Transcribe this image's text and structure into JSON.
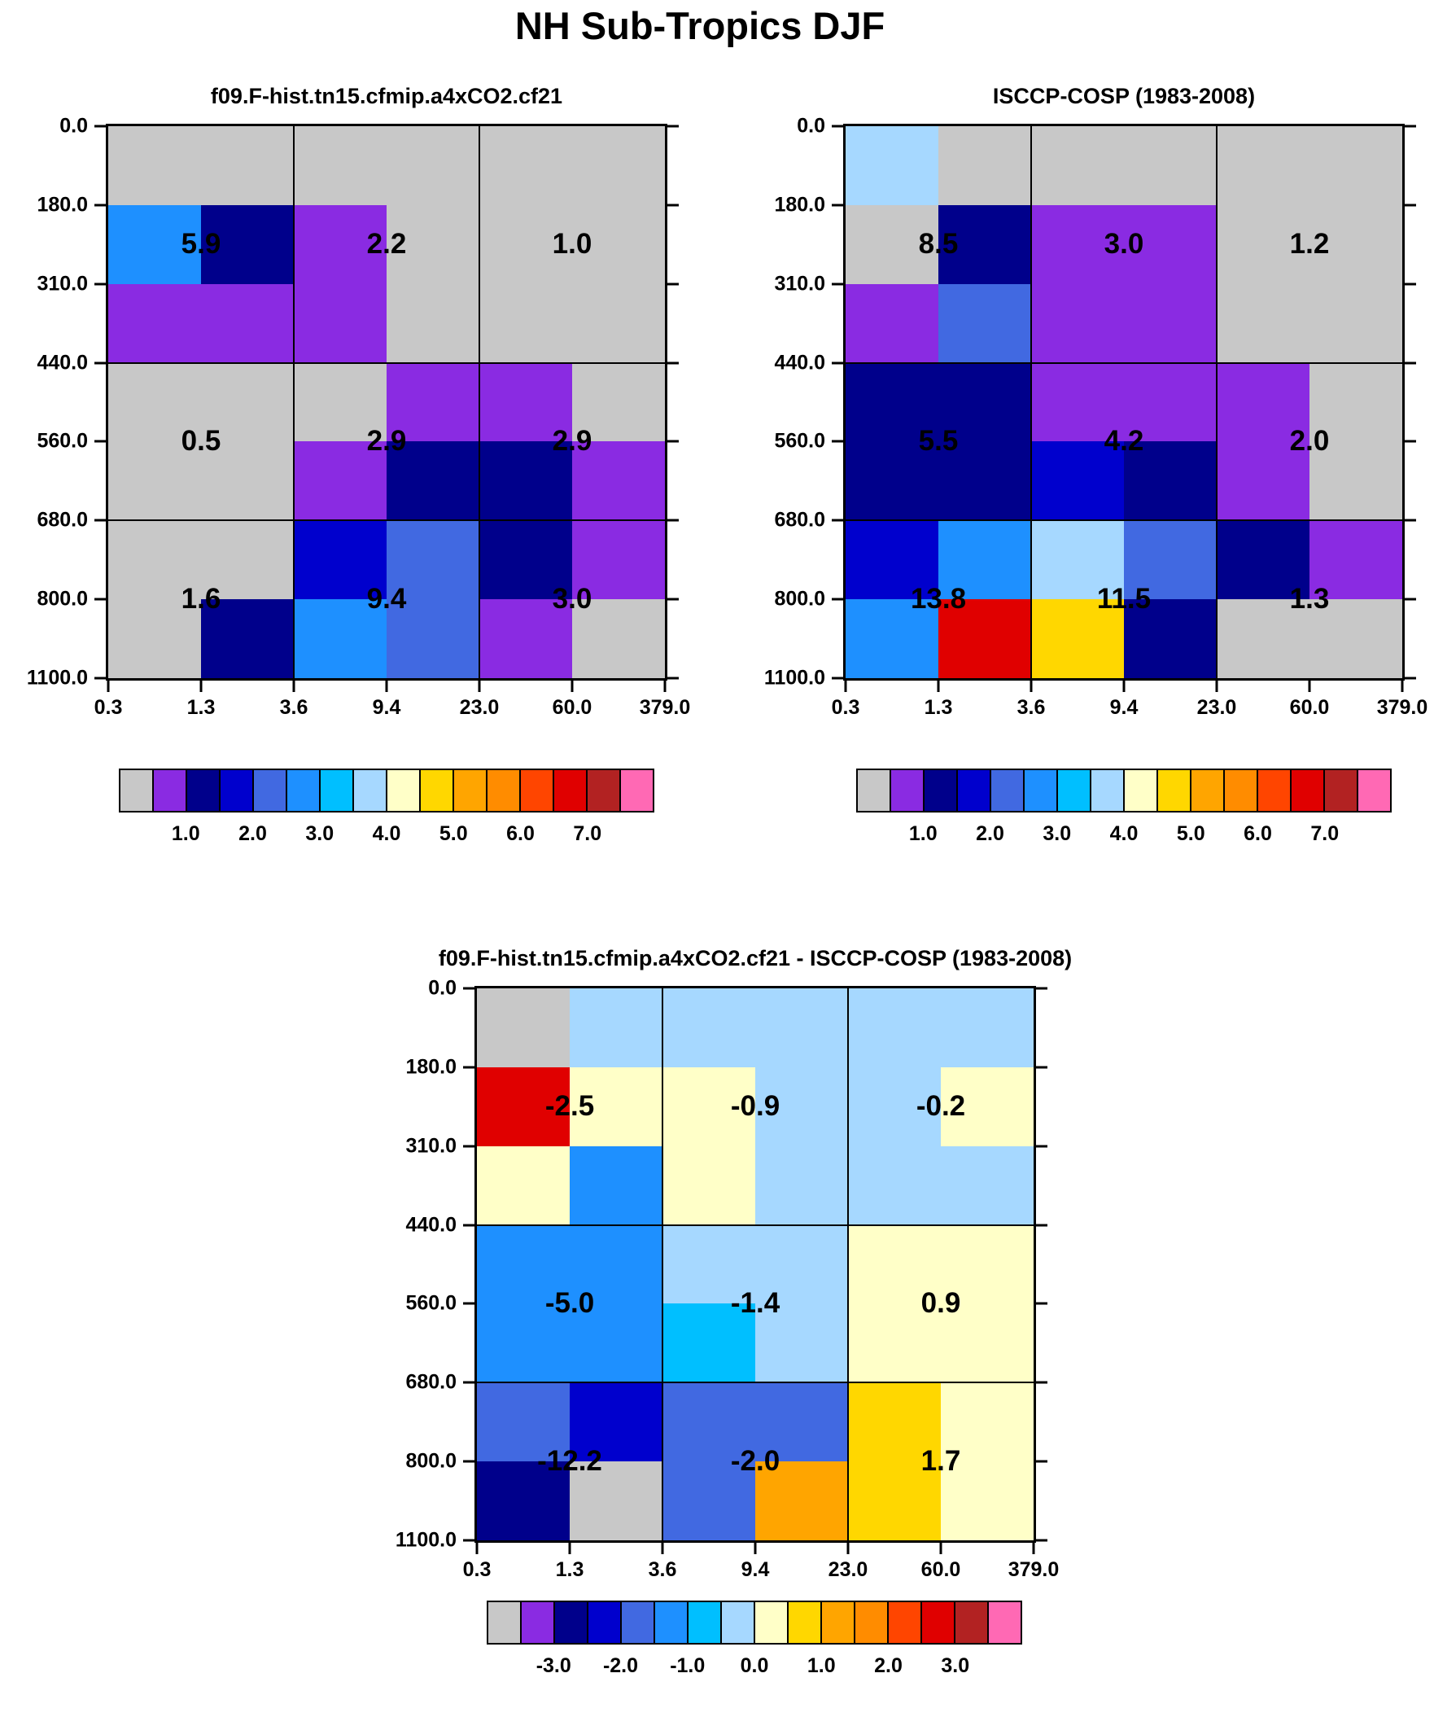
{
  "title": "NH Sub-Tropics DJF",
  "palette": {
    "gray": "#c8c8c8",
    "purple": "#8a2be2",
    "navy": "#00008b",
    "mediumblue": "#0000cd",
    "royal": "#4169e1",
    "dodger": "#1e90ff",
    "deepsky": "#00bfff",
    "lightblue": "#a6d8ff",
    "paleyellow": "#ffffc8",
    "gold": "#ffd700",
    "orange": "#ffa500",
    "darkorange": "#ff8c00",
    "orangered": "#ff4500",
    "red": "#e00000",
    "darkred": "#b22222",
    "pink": "#ff69b4"
  },
  "colorbar_colors": [
    "gray",
    "purple",
    "navy",
    "mediumblue",
    "royal",
    "dodger",
    "deepsky",
    "lightblue",
    "paleyellow",
    "gold",
    "orange",
    "darkorange",
    "orangered",
    "red",
    "darkred",
    "pink"
  ],
  "chart_data": [
    {
      "type": "heatmap",
      "title": "f09.F-hist.tn15.cfmip.a4xCO2.cf21",
      "x_tick_labels": [
        "0.3",
        "1.3",
        "3.6",
        "9.4",
        "23.0",
        "60.0",
        "379.0"
      ],
      "y_tick_labels": [
        "0.0",
        "180.0",
        "310.0",
        "440.0",
        "560.0",
        "680.0",
        "800.0",
        "1100.0"
      ],
      "cells": [
        [
          "gray",
          "gray",
          "gray",
          "gray",
          "gray",
          "gray"
        ],
        [
          "dodger",
          "navy",
          "purple",
          "gray",
          "gray",
          "gray"
        ],
        [
          "purple",
          "purple",
          "purple",
          "gray",
          "gray",
          "gray"
        ],
        [
          "gray",
          "gray",
          "gray",
          "purple",
          "purple",
          "gray"
        ],
        [
          "gray",
          "gray",
          "purple",
          "navy",
          "navy",
          "purple"
        ],
        [
          "gray",
          "gray",
          "mediumblue",
          "royal",
          "navy",
          "purple"
        ],
        [
          "gray",
          "navy",
          "dodger",
          "royal",
          "purple",
          "gray"
        ]
      ],
      "category_labels": [
        [
          "5.9",
          "2.2",
          "1.0"
        ],
        [
          "0.5",
          "2.9",
          "2.9"
        ],
        [
          "1.6",
          "9.4",
          "3.0"
        ]
      ],
      "colorbar_ticks": [
        "1.0",
        "2.0",
        "3.0",
        "4.0",
        "5.0",
        "6.0",
        "7.0"
      ]
    },
    {
      "type": "heatmap",
      "title": "ISCCP-COSP (1983-2008)",
      "x_tick_labels": [
        "0.3",
        "1.3",
        "3.6",
        "9.4",
        "23.0",
        "60.0",
        "379.0"
      ],
      "y_tick_labels": [
        "0.0",
        "180.0",
        "310.0",
        "440.0",
        "560.0",
        "680.0",
        "800.0",
        "1100.0"
      ],
      "cells": [
        [
          "lightblue",
          "gray",
          "gray",
          "gray",
          "gray",
          "gray"
        ],
        [
          "gray",
          "navy",
          "purple",
          "purple",
          "gray",
          "gray"
        ],
        [
          "purple",
          "royal",
          "purple",
          "purple",
          "gray",
          "gray"
        ],
        [
          "navy",
          "navy",
          "purple",
          "purple",
          "purple",
          "gray"
        ],
        [
          "navy",
          "navy",
          "mediumblue",
          "navy",
          "purple",
          "gray"
        ],
        [
          "mediumblue",
          "dodger",
          "lightblue",
          "royal",
          "navy",
          "purple"
        ],
        [
          "dodger",
          "red",
          "gold",
          "navy",
          "gray",
          "gray"
        ]
      ],
      "category_labels": [
        [
          "8.5",
          "3.0",
          "1.2"
        ],
        [
          "5.5",
          "4.2",
          "2.0"
        ],
        [
          "13.8",
          "11.5",
          "1.3"
        ]
      ],
      "colorbar_ticks": [
        "1.0",
        "2.0",
        "3.0",
        "4.0",
        "5.0",
        "6.0",
        "7.0"
      ]
    },
    {
      "type": "heatmap",
      "title": "f09.F-hist.tn15.cfmip.a4xCO2.cf21 - ISCCP-COSP (1983-2008)",
      "x_tick_labels": [
        "0.3",
        "1.3",
        "3.6",
        "9.4",
        "23.0",
        "60.0",
        "379.0"
      ],
      "y_tick_labels": [
        "0.0",
        "180.0",
        "310.0",
        "440.0",
        "560.0",
        "680.0",
        "800.0",
        "1100.0"
      ],
      "cells": [
        [
          "gray",
          "lightblue",
          "lightblue",
          "lightblue",
          "lightblue",
          "lightblue"
        ],
        [
          "red",
          "paleyellow",
          "paleyellow",
          "lightblue",
          "lightblue",
          "paleyellow"
        ],
        [
          "paleyellow",
          "dodger",
          "paleyellow",
          "lightblue",
          "lightblue",
          "lightblue"
        ],
        [
          "dodger",
          "dodger",
          "lightblue",
          "lightblue",
          "paleyellow",
          "paleyellow"
        ],
        [
          "dodger",
          "dodger",
          "deepsky",
          "lightblue",
          "paleyellow",
          "paleyellow"
        ],
        [
          "royal",
          "mediumblue",
          "royal",
          "royal",
          "gold",
          "paleyellow"
        ],
        [
          "navy",
          "gray",
          "royal",
          "orange",
          "gold",
          "paleyellow"
        ]
      ],
      "category_labels": [
        [
          "-2.5",
          "-0.9",
          "-0.2"
        ],
        [
          "-5.0",
          "-1.4",
          "0.9"
        ],
        [
          "-12.2",
          "-2.0",
          "1.7"
        ]
      ],
      "colorbar_ticks": [
        "-3.0",
        "-2.0",
        "-1.0",
        "0.0",
        "1.0",
        "2.0",
        "3.0"
      ]
    }
  ]
}
